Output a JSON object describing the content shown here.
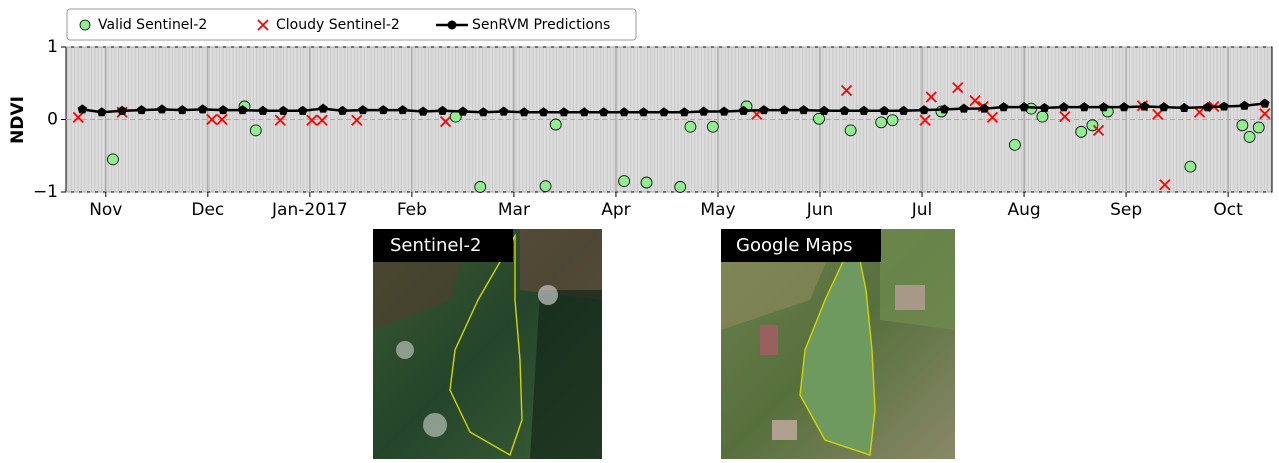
{
  "chart_data": {
    "type": "scatter",
    "y_label": "NDVI",
    "grid": true,
    "xlim": [
      -0.39,
      11.43
    ],
    "ylim": [
      -1,
      1
    ],
    "xticks": [
      {
        "value": 0,
        "label": "Nov"
      },
      {
        "value": 1,
        "label": "Dec"
      },
      {
        "value": 2,
        "label": "Jan-2017"
      },
      {
        "value": 3,
        "label": "Feb"
      },
      {
        "value": 4,
        "label": "Mar"
      },
      {
        "value": 5,
        "label": "Apr"
      },
      {
        "value": 6,
        "label": "May"
      },
      {
        "value": 7,
        "label": "Jun"
      },
      {
        "value": 8,
        "label": "Jul"
      },
      {
        "value": 9,
        "label": "Aug"
      },
      {
        "value": 10,
        "label": "Sep"
      },
      {
        "value": 11,
        "label": "Oct"
      }
    ],
    "yticks": [
      {
        "value": -1,
        "label": "−1"
      },
      0,
      1
    ],
    "series": [
      {
        "name": "Valid Sentinel-2",
        "marker": "circle",
        "color": "#90ee90",
        "x": [
          0.07,
          1.36,
          1.47,
          3.43,
          3.67,
          4.31,
          4.41,
          5.08,
          5.3,
          5.63,
          5.73,
          5.95,
          6.28,
          6.99,
          7.3,
          7.6,
          7.71,
          8.19,
          8.91,
          9.07,
          9.18,
          9.56,
          9.67,
          9.82,
          10.63,
          11.14,
          11.21,
          11.3
        ],
        "values": [
          -0.55,
          0.18,
          -0.15,
          0.04,
          -0.93,
          -0.92,
          -0.07,
          -0.85,
          -0.87,
          -0.93,
          -0.1,
          -0.1,
          0.18,
          0.01,
          -0.15,
          -0.04,
          -0.01,
          0.11,
          -0.35,
          0.15,
          0.04,
          -0.17,
          -0.08,
          0.11,
          -0.65,
          -0.08,
          -0.24,
          -0.11
        ]
      },
      {
        "name": "Cloudy Sentinel-2",
        "marker": "cross",
        "color": "#ff0000",
        "x": [
          -0.27,
          0.16,
          1.04,
          1.14,
          1.71,
          2.02,
          2.12,
          2.46,
          3.33,
          6.38,
          7.26,
          8.03,
          8.09,
          8.35,
          8.52,
          8.6,
          8.69,
          9.4,
          9.73,
          10.16,
          10.31,
          10.38,
          10.72,
          10.86,
          11.36
        ],
        "values": [
          0.03,
          0.1,
          0,
          0,
          -0.01,
          -0.01,
          -0.01,
          -0.01,
          -0.03,
          0.07,
          0.4,
          -0.01,
          0.31,
          0.44,
          0.26,
          0.18,
          0.03,
          0.04,
          -0.15,
          0.19,
          0.07,
          -0.9,
          0.1,
          0.18,
          0.08
        ]
      },
      {
        "name": "SenRVM Predictions",
        "marker": "line",
        "color": "#000000",
        "x": [
          -0.23,
          -0.04,
          0.16,
          0.35,
          0.55,
          0.75,
          0.95,
          1.15,
          1.34,
          1.54,
          1.74,
          1.93,
          2.13,
          2.32,
          2.52,
          2.72,
          2.91,
          3.11,
          3.3,
          3.5,
          3.7,
          3.9,
          4.1,
          4.29,
          4.49,
          4.69,
          4.88,
          5.08,
          5.27,
          5.47,
          5.67,
          5.86,
          6.06,
          6.25,
          6.45,
          6.65,
          6.84,
          7.04,
          7.24,
          7.43,
          7.63,
          7.82,
          8.02,
          8.22,
          8.41,
          8.61,
          8.8,
          9.0,
          9.2,
          9.39,
          9.59,
          9.78,
          9.98,
          10.18,
          10.37,
          10.57,
          10.8,
          10.96,
          11.16,
          11.36
        ],
        "values": [
          0.14,
          0.1,
          0.12,
          0.13,
          0.14,
          0.13,
          0.14,
          0.13,
          0.13,
          0.12,
          0.12,
          0.12,
          0.15,
          0.12,
          0.13,
          0.13,
          0.13,
          0.11,
          0.12,
          0.11,
          0.1,
          0.11,
          0.1,
          0.1,
          0.1,
          0.1,
          0.1,
          0.1,
          0.1,
          0.1,
          0.1,
          0.11,
          0.11,
          0.12,
          0.13,
          0.13,
          0.13,
          0.12,
          0.12,
          0.12,
          0.12,
          0.12,
          0.13,
          0.14,
          0.15,
          0.15,
          0.17,
          0.17,
          0.16,
          0.17,
          0.17,
          0.17,
          0.17,
          0.18,
          0.17,
          0.16,
          0.17,
          0.18,
          0.19,
          0.22
        ]
      }
    ]
  },
  "images": [
    {
      "label": "Sentinel-2"
    },
    {
      "label": "Google Maps"
    }
  ]
}
